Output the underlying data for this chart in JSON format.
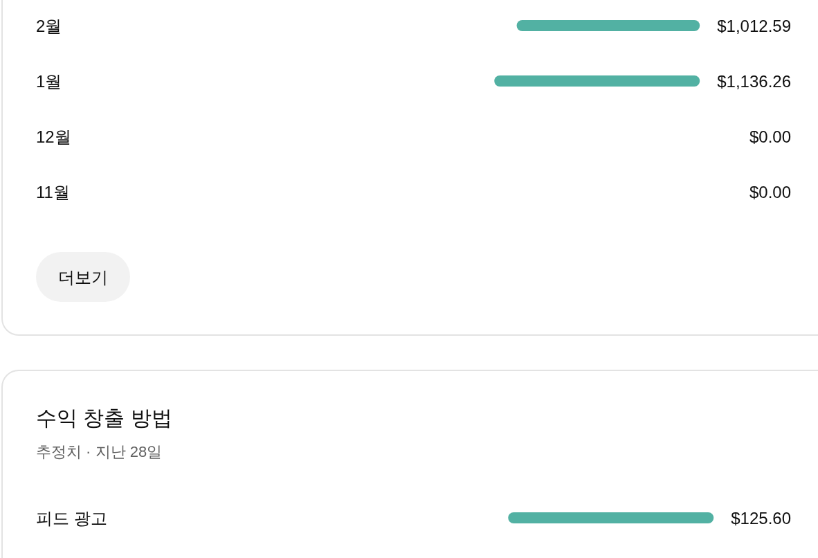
{
  "chart_data": [
    {
      "type": "bar",
      "orientation": "horizontal",
      "categories": [
        "2월",
        "1월",
        "12월",
        "11월"
      ],
      "values": [
        1012.59,
        1136.26,
        0,
        0
      ],
      "value_labels": [
        "$1,012.59",
        "$1,136.26",
        "$0.00",
        "$0.00"
      ],
      "color": "#52b1a3",
      "annotations": [
        "더보기"
      ]
    },
    {
      "type": "bar",
      "orientation": "horizontal",
      "title": "수익 창출 방법",
      "subtitle": "추정치 · 지난 28일",
      "categories": [
        "피드 광고"
      ],
      "values": [
        125.6
      ],
      "value_labels": [
        "$125.60"
      ],
      "color": "#52b1a3"
    }
  ]
}
